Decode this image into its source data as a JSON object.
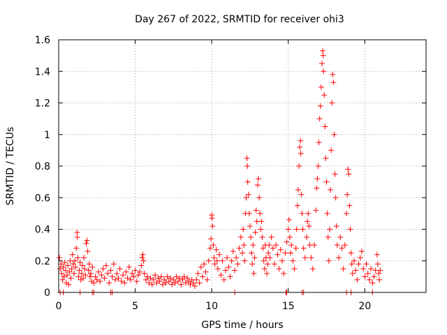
{
  "chart_data": {
    "type": "scatter",
    "title": "Day 267 of 2022, SRMTID for receiver ohi3",
    "xlabel": "GPS time / hours",
    "ylabel": "SRMTID / TECUs",
    "xlim": [
      0,
      24
    ],
    "ylim": [
      0,
      1.6
    ],
    "xticks": [
      0,
      5,
      10,
      15,
      20
    ],
    "xtick_labels": [
      "0",
      "5",
      "10",
      "15",
      "20"
    ],
    "yticks": [
      0,
      0.2,
      0.4,
      0.6,
      0.8,
      1.0,
      1.2,
      1.4,
      1.6
    ],
    "ytick_labels": [
      "0",
      "0.2",
      "0.4",
      "0.6",
      "0.8",
      "1",
      "1.2",
      "1.4",
      "1.6"
    ],
    "grid": true,
    "marker": "+",
    "series": [
      {
        "name": "SRMTID",
        "color": "#ff0000",
        "points": [
          [
            0.05,
            0.22
          ],
          [
            0.1,
            0.15
          ],
          [
            0.15,
            0.18
          ],
          [
            0.2,
            0.12
          ],
          [
            0.25,
            0.08
          ],
          [
            0.3,
            0.16
          ],
          [
            0.35,
            0.1
          ],
          [
            0.4,
            0.19
          ],
          [
            0.45,
            0.14
          ],
          [
            0.5,
            0.06
          ],
          [
            0.55,
            0.11
          ],
          [
            0.6,
            0.17
          ],
          [
            0.65,
            0.05
          ],
          [
            0.7,
            0.13
          ],
          [
            0.75,
            0.2
          ],
          [
            0.8,
            0.09
          ],
          [
            0.85,
            0.15
          ],
          [
            0.9,
            0.24
          ],
          [
            0.95,
            0.18
          ],
          [
            1.0,
            0.12
          ],
          [
            1.05,
            0.2
          ],
          [
            1.1,
            0.16
          ],
          [
            1.15,
            0.28
          ],
          [
            1.2,
            0.38
          ],
          [
            1.22,
            0.35
          ],
          [
            1.25,
            0.22
          ],
          [
            1.3,
            0.1
          ],
          [
            1.35,
            0.14
          ],
          [
            1.4,
            0.19
          ],
          [
            1.45,
            0.08
          ],
          [
            1.5,
            0.12
          ],
          [
            1.55,
            0.17
          ],
          [
            1.6,
            0.09
          ],
          [
            1.65,
            0.22
          ],
          [
            1.7,
            0.15
          ],
          [
            1.75,
            0.11
          ],
          [
            1.8,
            0.31
          ],
          [
            1.85,
            0.33
          ],
          [
            1.9,
            0.26
          ],
          [
            1.95,
            0.14
          ],
          [
            2.0,
            0.18
          ],
          [
            2.05,
            0.1
          ],
          [
            2.1,
            0.12
          ],
          [
            2.15,
            0.07
          ],
          [
            2.2,
            0.16
          ],
          [
            2.3,
            0.06
          ],
          [
            2.4,
            0.1
          ],
          [
            2.5,
            0.08
          ],
          [
            2.6,
            0.13
          ],
          [
            2.7,
            0.07
          ],
          [
            2.8,
            0.11
          ],
          [
            2.9,
            0.15
          ],
          [
            3.0,
            0.09
          ],
          [
            3.1,
            0.17
          ],
          [
            3.2,
            0.12
          ],
          [
            3.3,
            0.06
          ],
          [
            3.4,
            0.14
          ],
          [
            3.5,
            0.1
          ],
          [
            3.6,
            0.18
          ],
          [
            3.7,
            0.08
          ],
          [
            3.8,
            0.12
          ],
          [
            3.9,
            0.09
          ],
          [
            4.0,
            0.15
          ],
          [
            4.1,
            0.07
          ],
          [
            4.2,
            0.11
          ],
          [
            4.3,
            0.06
          ],
          [
            4.4,
            0.13
          ],
          [
            4.5,
            0.09
          ],
          [
            4.6,
            0.16
          ],
          [
            4.7,
            0.08
          ],
          [
            4.8,
            0.12
          ],
          [
            4.9,
            0.1
          ],
          [
            5.0,
            0.14
          ],
          [
            5.1,
            0.07
          ],
          [
            5.2,
            0.11
          ],
          [
            5.3,
            0.13
          ],
          [
            5.4,
            0.17
          ],
          [
            5.45,
            0.22
          ],
          [
            5.5,
            0.24
          ],
          [
            5.55,
            0.2
          ],
          [
            5.6,
            0.12
          ],
          [
            5.7,
            0.08
          ],
          [
            5.8,
            0.1
          ],
          [
            5.9,
            0.06
          ],
          [
            6.0,
            0.09
          ],
          [
            6.1,
            0.05
          ],
          [
            6.2,
            0.08
          ],
          [
            6.3,
            0.11
          ],
          [
            6.4,
            0.06
          ],
          [
            6.5,
            0.09
          ],
          [
            6.6,
            0.07
          ],
          [
            6.7,
            0.1
          ],
          [
            6.8,
            0.05
          ],
          [
            6.9,
            0.08
          ],
          [
            7.0,
            0.06
          ],
          [
            7.1,
            0.1
          ],
          [
            7.2,
            0.07
          ],
          [
            7.3,
            0.09
          ],
          [
            7.4,
            0.05
          ],
          [
            7.5,
            0.08
          ],
          [
            7.6,
            0.06
          ],
          [
            7.7,
            0.1
          ],
          [
            7.8,
            0.07
          ],
          [
            7.9,
            0.09
          ],
          [
            8.0,
            0.05
          ],
          [
            8.1,
            0.08
          ],
          [
            8.2,
            0.1
          ],
          [
            8.3,
            0.06
          ],
          [
            8.4,
            0.09
          ],
          [
            8.5,
            0.07
          ],
          [
            8.6,
            0.05
          ],
          [
            8.7,
            0.08
          ],
          [
            8.8,
            0.06
          ],
          [
            8.9,
            0.04
          ],
          [
            9.0,
            0.08
          ],
          [
            9.1,
            0.12
          ],
          [
            9.2,
            0.06
          ],
          [
            9.3,
            0.16
          ],
          [
            9.4,
            0.1
          ],
          [
            9.5,
            0.18
          ],
          [
            9.6,
            0.13
          ],
          [
            9.7,
            0.08
          ],
          [
            9.8,
            0.2
          ],
          [
            9.9,
            0.28
          ],
          [
            9.95,
            0.34
          ],
          [
            10.0,
            0.49
          ],
          [
            10.02,
            0.47
          ],
          [
            10.05,
            0.42
          ],
          [
            10.1,
            0.3
          ],
          [
            10.15,
            0.22
          ],
          [
            10.2,
            0.18
          ],
          [
            10.3,
            0.27
          ],
          [
            10.35,
            0.2
          ],
          [
            10.4,
            0.15
          ],
          [
            10.5,
            0.24
          ],
          [
            10.6,
            0.11
          ],
          [
            10.7,
            0.2
          ],
          [
            10.8,
            0.08
          ],
          [
            10.9,
            0.14
          ],
          [
            11.0,
            0.22
          ],
          [
            11.1,
            0.16
          ],
          [
            11.2,
            0.1
          ],
          [
            11.3,
            0.2
          ],
          [
            11.4,
            0.26
          ],
          [
            11.5,
            0.14
          ],
          [
            11.6,
            0.22
          ],
          [
            11.7,
            0.18
          ],
          [
            11.8,
            0.28
          ],
          [
            11.9,
            0.35
          ],
          [
            12.0,
            0.25
          ],
          [
            12.05,
            0.4
          ],
          [
            12.1,
            0.3
          ],
          [
            12.15,
            0.2
          ],
          [
            12.2,
            0.5
          ],
          [
            12.25,
            0.6
          ],
          [
            12.3,
            0.85
          ],
          [
            12.33,
            0.8
          ],
          [
            12.35,
            0.7
          ],
          [
            12.4,
            0.62
          ],
          [
            12.45,
            0.5
          ],
          [
            12.5,
            0.42
          ],
          [
            12.55,
            0.35
          ],
          [
            12.6,
            0.25
          ],
          [
            12.65,
            0.18
          ],
          [
            12.7,
            0.3
          ],
          [
            12.75,
            0.12
          ],
          [
            12.8,
            0.22
          ],
          [
            12.85,
            0.38
          ],
          [
            12.9,
            0.52
          ],
          [
            12.95,
            0.45
          ],
          [
            13.0,
            0.68
          ],
          [
            13.05,
            0.72
          ],
          [
            13.1,
            0.6
          ],
          [
            13.15,
            0.5
          ],
          [
            13.2,
            0.4
          ],
          [
            13.25,
            0.45
          ],
          [
            13.3,
            0.35
          ],
          [
            13.35,
            0.28
          ],
          [
            13.4,
            0.2
          ],
          [
            13.45,
            0.15
          ],
          [
            13.5,
            0.3
          ],
          [
            13.55,
            0.22
          ],
          [
            13.6,
            0.12
          ],
          [
            13.65,
            0.18
          ],
          [
            13.7,
            0.25
          ],
          [
            13.75,
            0.3
          ],
          [
            13.8,
            0.22
          ],
          [
            13.9,
            0.35
          ],
          [
            14.0,
            0.28
          ],
          [
            14.1,
            0.18
          ],
          [
            14.2,
            0.3
          ],
          [
            14.3,
            0.24
          ],
          [
            14.4,
            0.15
          ],
          [
            14.5,
            0.27
          ],
          [
            14.6,
            0.2
          ],
          [
            14.7,
            0.12
          ],
          [
            14.8,
            0.25
          ],
          [
            14.9,
            0.32
          ],
          [
            15.0,
            0.4
          ],
          [
            15.05,
            0.46
          ],
          [
            15.1,
            0.35
          ],
          [
            15.15,
            0.25
          ],
          [
            15.2,
            0.3
          ],
          [
            15.3,
            0.2
          ],
          [
            15.4,
            0.15
          ],
          [
            15.5,
            0.28
          ],
          [
            15.55,
            0.4
          ],
          [
            15.6,
            0.55
          ],
          [
            15.65,
            0.65
          ],
          [
            15.7,
            0.8
          ],
          [
            15.75,
            0.92
          ],
          [
            15.8,
            0.96
          ],
          [
            15.82,
            0.88
          ],
          [
            15.85,
            0.62
          ],
          [
            15.9,
            0.5
          ],
          [
            15.95,
            0.4
          ],
          [
            16.0,
            0.28
          ],
          [
            16.1,
            0.22
          ],
          [
            16.2,
            0.35
          ],
          [
            16.25,
            0.45
          ],
          [
            16.3,
            0.5
          ],
          [
            16.35,
            0.42
          ],
          [
            16.4,
            0.3
          ],
          [
            16.5,
            0.22
          ],
          [
            16.6,
            0.15
          ],
          [
            16.7,
            0.3
          ],
          [
            16.8,
            0.52
          ],
          [
            16.85,
            0.66
          ],
          [
            16.9,
            0.72
          ],
          [
            16.95,
            0.8
          ],
          [
            17.0,
            0.95
          ],
          [
            17.05,
            1.1
          ],
          [
            17.1,
            1.18
          ],
          [
            17.15,
            1.3
          ],
          [
            17.2,
            1.45
          ],
          [
            17.25,
            1.53
          ],
          [
            17.28,
            1.5
          ],
          [
            17.3,
            1.4
          ],
          [
            17.35,
            1.25
          ],
          [
            17.4,
            1.05
          ],
          [
            17.45,
            0.85
          ],
          [
            17.5,
            0.7
          ],
          [
            17.55,
            0.5
          ],
          [
            17.6,
            0.35
          ],
          [
            17.65,
            0.2
          ],
          [
            17.7,
            0.4
          ],
          [
            17.75,
            0.65
          ],
          [
            17.8,
            0.9
          ],
          [
            17.85,
            1.2
          ],
          [
            17.9,
            1.38
          ],
          [
            17.95,
            1.33
          ],
          [
            18.0,
            1.0
          ],
          [
            18.05,
            0.75
          ],
          [
            18.1,
            0.6
          ],
          [
            18.15,
            0.42
          ],
          [
            18.2,
            0.3
          ],
          [
            18.3,
            0.22
          ],
          [
            18.4,
            0.35
          ],
          [
            18.5,
            0.28
          ],
          [
            18.6,
            0.15
          ],
          [
            18.7,
            0.3
          ],
          [
            18.8,
            0.5
          ],
          [
            18.85,
            0.62
          ],
          [
            18.9,
            0.78
          ],
          [
            18.95,
            0.75
          ],
          [
            19.0,
            0.55
          ],
          [
            19.05,
            0.4
          ],
          [
            19.1,
            0.25
          ],
          [
            19.15,
            0.18
          ],
          [
            19.2,
            0.12
          ],
          [
            19.3,
            0.2
          ],
          [
            19.4,
            0.14
          ],
          [
            19.5,
            0.08
          ],
          [
            19.6,
            0.18
          ],
          [
            19.7,
            0.22
          ],
          [
            19.8,
            0.26
          ],
          [
            19.9,
            0.15
          ],
          [
            20.0,
            0.1
          ],
          [
            20.1,
            0.18
          ],
          [
            20.2,
            0.12
          ],
          [
            20.3,
            0.08
          ],
          [
            20.4,
            0.15
          ],
          [
            20.5,
            0.06
          ],
          [
            20.6,
            0.1
          ],
          [
            20.7,
            0.14
          ],
          [
            20.8,
            0.24
          ],
          [
            20.85,
            0.18
          ],
          [
            20.9,
            0.12
          ],
          [
            20.95,
            0.08
          ],
          [
            21.0,
            0.14
          ],
          [
            0.1,
            0.0
          ],
          [
            0.3,
            0.0
          ],
          [
            1.4,
            0.0
          ],
          [
            2.2,
            0.0
          ],
          [
            2.3,
            0.0
          ],
          [
            3.4,
            0.0
          ],
          [
            3.5,
            0.0
          ],
          [
            11.5,
            0.0
          ],
          [
            14.85,
            0.0
          ],
          [
            14.9,
            0.0
          ],
          [
            15.9,
            0.0
          ],
          [
            16.0,
            0.0
          ],
          [
            18.8,
            0.0
          ],
          [
            19.1,
            0.0
          ],
          [
            20.5,
            0.0
          ]
        ]
      }
    ]
  }
}
